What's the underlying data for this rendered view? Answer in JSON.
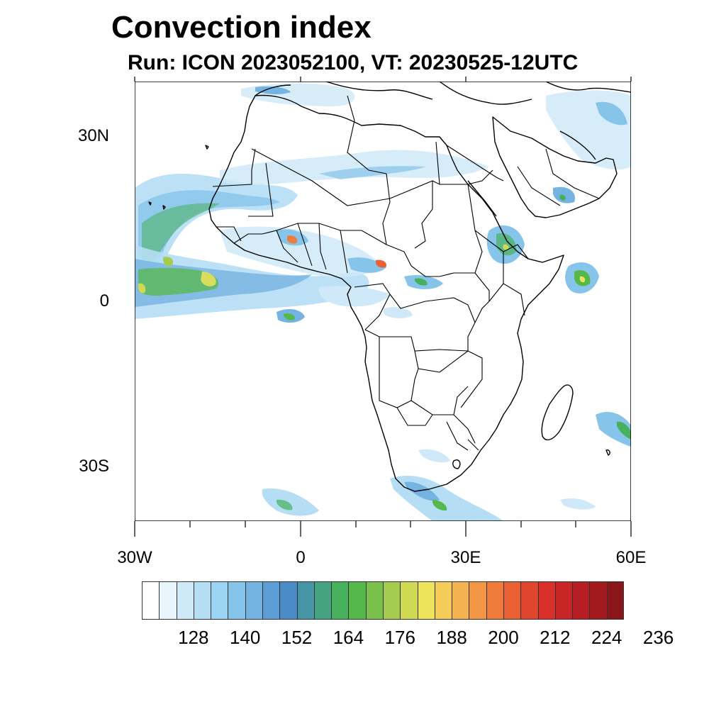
{
  "title": "Convection index",
  "subtitle": "Run: ICON 2023052100,  VT: 20230525-12UTC",
  "map": {
    "lat_labels": [
      "30N",
      "0",
      "30S"
    ],
    "lon_labels": [
      "30W",
      "0",
      "30E",
      "60E"
    ],
    "land_color": "#ffffff",
    "border_color": "#000000"
  },
  "colorbar": {
    "colors": [
      "#ffffff",
      "#e8f5fc",
      "#cfe9f8",
      "#b5def5",
      "#9bd4f2",
      "#86c4ea",
      "#75b3e2",
      "#5d9ed6",
      "#4a8cc6",
      "#4696a8",
      "#45a381",
      "#47b05c",
      "#56b84b",
      "#7cc04c",
      "#a5cb4f",
      "#cfd951",
      "#eee35a",
      "#f6cc58",
      "#f4b250",
      "#f29645",
      "#ef7c3a",
      "#ea6032",
      "#e0462d",
      "#d9302b",
      "#c92527",
      "#b51d22",
      "#a2191e",
      "#8b161a"
    ],
    "tick_labels": [
      "128",
      "140",
      "152",
      "164",
      "176",
      "188",
      "200",
      "212",
      "224",
      "236"
    ]
  }
}
